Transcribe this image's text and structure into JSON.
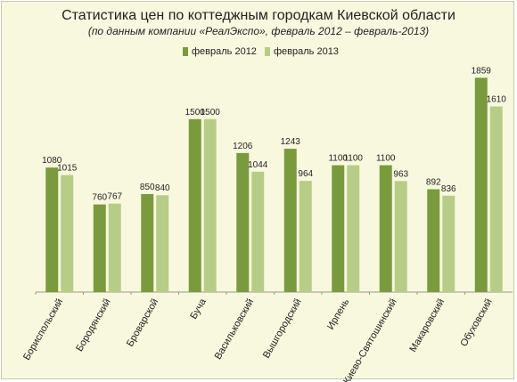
{
  "colors": {
    "series2012": "#7a9a3e",
    "series2013": "#b7cd87",
    "background": "#f8f8de"
  },
  "chart_data": {
    "type": "bar",
    "title": "Статистика цен по коттеджным городкам Киевской области",
    "subtitle": "(по данным компании «РеалЭкспо», февраль 2012 – февраль-2013)",
    "categories": [
      "Бориспольский",
      "Бородянский",
      "Броварской",
      "Буча",
      "Васильковский",
      "Вышгородский",
      "Ирпень",
      "Киево-Святошинский",
      "Макаровский",
      "Обуховский"
    ],
    "series": [
      {
        "name": "февраль 2012",
        "values": [
          1080,
          760,
          850,
          1500,
          1206,
          1243,
          1100,
          1100,
          892,
          1859
        ]
      },
      {
        "name": "февраль 2013",
        "values": [
          1015,
          767,
          840,
          1500,
          1044,
          964,
          1100,
          963,
          836,
          1610
        ]
      }
    ],
    "ylim": [
      0,
      1900
    ],
    "grid": false,
    "legend": "top"
  }
}
